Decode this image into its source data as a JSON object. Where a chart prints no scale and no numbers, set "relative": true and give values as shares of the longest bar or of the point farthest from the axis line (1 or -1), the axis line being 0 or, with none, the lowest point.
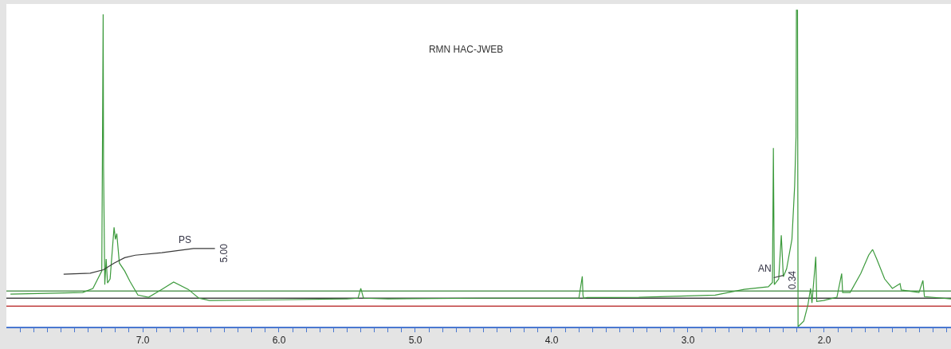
{
  "chart_data": {
    "type": "line",
    "title": "RMN HAC-JWEB",
    "relative": true,
    "line_style": "solid",
    "xlim": [
      8.0,
      1.07
    ],
    "xticks": [
      {
        "value": 7.9,
        "label": null
      },
      {
        "value": 7.8,
        "label": null
      },
      {
        "value": 7.7,
        "label": null
      },
      {
        "value": 7.6,
        "label": null
      },
      {
        "value": 7.5,
        "label": null
      },
      {
        "value": 7.4,
        "label": null
      },
      {
        "value": 7.3,
        "label": null
      },
      {
        "value": 7.2,
        "label": null
      },
      {
        "value": 7.1,
        "label": null
      },
      {
        "value": 7.0,
        "label": "7.0"
      },
      {
        "value": 6.9,
        "label": null
      },
      {
        "value": 6.8,
        "label": null
      },
      {
        "value": 6.7,
        "label": null
      },
      {
        "value": 6.6,
        "label": null
      },
      {
        "value": 6.5,
        "label": null
      },
      {
        "value": 6.4,
        "label": null
      },
      {
        "value": 6.3,
        "label": null
      },
      {
        "value": 6.2,
        "label": null
      },
      {
        "value": 6.1,
        "label": null
      },
      {
        "value": 6.0,
        "label": "6.0"
      },
      {
        "value": 5.9,
        "label": null
      },
      {
        "value": 5.8,
        "label": null
      },
      {
        "value": 5.7,
        "label": null
      },
      {
        "value": 5.6,
        "label": null
      },
      {
        "value": 5.5,
        "label": null
      },
      {
        "value": 5.4,
        "label": null
      },
      {
        "value": 5.3,
        "label": null
      },
      {
        "value": 5.2,
        "label": null
      },
      {
        "value": 5.1,
        "label": null
      },
      {
        "value": 5.0,
        "label": "5.0"
      },
      {
        "value": 4.9,
        "label": null
      },
      {
        "value": 4.8,
        "label": null
      },
      {
        "value": 4.7,
        "label": null
      },
      {
        "value": 4.6,
        "label": null
      },
      {
        "value": 4.5,
        "label": null
      },
      {
        "value": 4.4,
        "label": null
      },
      {
        "value": 4.3,
        "label": null
      },
      {
        "value": 4.2,
        "label": null
      },
      {
        "value": 4.1,
        "label": null
      },
      {
        "value": 4.0,
        "label": "4.0"
      },
      {
        "value": 3.9,
        "label": null
      },
      {
        "value": 3.8,
        "label": null
      },
      {
        "value": 3.7,
        "label": null
      },
      {
        "value": 3.6,
        "label": null
      },
      {
        "value": 3.5,
        "label": null
      },
      {
        "value": 3.4,
        "label": null
      },
      {
        "value": 3.3,
        "label": null
      },
      {
        "value": 3.2,
        "label": null
      },
      {
        "value": 3.1,
        "label": null
      },
      {
        "value": 3.0,
        "label": "3.0"
      },
      {
        "value": 2.9,
        "label": null
      },
      {
        "value": 2.8,
        "label": null
      },
      {
        "value": 2.7,
        "label": null
      },
      {
        "value": 2.6,
        "label": null
      },
      {
        "value": 2.5,
        "label": null
      },
      {
        "value": 2.4,
        "label": null
      },
      {
        "value": 2.3,
        "label": null
      },
      {
        "value": 2.2,
        "label": null
      },
      {
        "value": 2.1,
        "label": null
      },
      {
        "value": 2.0,
        "label": "2.0"
      },
      {
        "value": 1.9,
        "label": null
      },
      {
        "value": 1.8,
        "label": null
      },
      {
        "value": 1.7,
        "label": null
      },
      {
        "value": 1.6,
        "label": null
      },
      {
        "value": 1.5,
        "label": null
      },
      {
        "value": 1.4,
        "label": null
      },
      {
        "value": 1.3,
        "label": null
      },
      {
        "value": 1.2,
        "label": null
      },
      {
        "value": 1.1,
        "label": null
      }
    ],
    "series": [
      {
        "color": "#3c9a3c",
        "x": [
          7.97,
          7.44,
          7.365,
          7.3,
          7.29,
          7.287,
          7.278,
          7.268,
          7.258,
          7.239,
          7.21,
          7.2,
          7.19,
          7.171,
          7.132,
          7.093,
          7.035,
          6.957,
          6.86,
          6.773,
          6.666,
          6.588,
          6.51,
          6.0,
          5.5,
          5.42,
          5.4,
          5.38,
          5.2,
          4.5,
          3.8,
          3.775,
          3.77,
          3.765,
          3.74,
          3.36,
          2.8,
          2.587,
          2.41,
          2.38,
          2.373,
          2.366,
          2.334,
          2.315,
          2.3,
          2.276,
          2.237,
          2.217,
          2.207,
          2.204,
          2.196,
          2.192,
          2.15,
          2.12,
          2.1,
          2.09,
          2.062,
          2.055,
          2.005,
          1.907,
          1.872,
          1.865,
          1.81,
          1.732,
          1.674,
          1.645,
          1.615,
          1.557,
          1.5,
          1.444,
          1.435,
          1.305,
          1.276,
          1.265,
          1.07
        ],
        "values": [
          0.103,
          0.108,
          0.121,
          0.176,
          0.987,
          0.5,
          0.133,
          0.214,
          0.138,
          0.151,
          0.314,
          0.276,
          0.294,
          0.201,
          0.176,
          0.143,
          0.1,
          0.093,
          0.118,
          0.141,
          0.118,
          0.09,
          0.083,
          0.085,
          0.088,
          0.09,
          0.121,
          0.09,
          0.088,
          0.09,
          0.09,
          0.159,
          0.1,
          0.09,
          0.092,
          0.093,
          0.1,
          0.118,
          0.126,
          0.14,
          0.565,
          0.133,
          0.151,
          0.289,
          0.158,
          0.183,
          0.276,
          0.445,
          0.6,
          1.0,
          1.0,
          0.0,
          0.018,
          0.068,
          0.121,
          0.075,
          0.221,
          0.08,
          0.083,
          0.093,
          0.168,
          0.108,
          0.108,
          0.168,
          0.226,
          0.244,
          0.214,
          0.151,
          0.121,
          0.136,
          0.116,
          0.108,
          0.146,
          0.095,
          0.088
        ]
      },
      {
        "color": "#3a3a3a",
        "x": [
          7.58,
          7.385,
          7.287,
          7.21,
          7.132,
          7.054,
          6.86,
          6.627,
          6.47
        ],
        "values": [
          0.166,
          0.169,
          0.18,
          0.201,
          0.218,
          0.226,
          0.234,
          0.247,
          0.247
        ]
      },
      {
        "color": "#3a3a3a",
        "x": [
          2.37,
          2.34,
          2.3
        ],
        "values": [
          0.155,
          0.158,
          0.162
        ]
      }
    ],
    "ref_lines": [
      {
        "axis": "y",
        "value": 0.113,
        "color": "#5a9a5a"
      },
      {
        "axis": "y",
        "value": 0.09,
        "color": "#444444"
      },
      {
        "axis": "y",
        "value": 0.065,
        "color": "#c04040"
      }
    ],
    "annotations": [
      {
        "text": "PS",
        "x": 6.627,
        "y": 0.247
      },
      {
        "text": "5.00",
        "x": 6.47,
        "y": 0.247
      },
      {
        "text": "AN",
        "x": 2.37,
        "y": 0.155
      },
      {
        "text": "0.34",
        "x": 2.3,
        "y": 0.162
      }
    ]
  }
}
